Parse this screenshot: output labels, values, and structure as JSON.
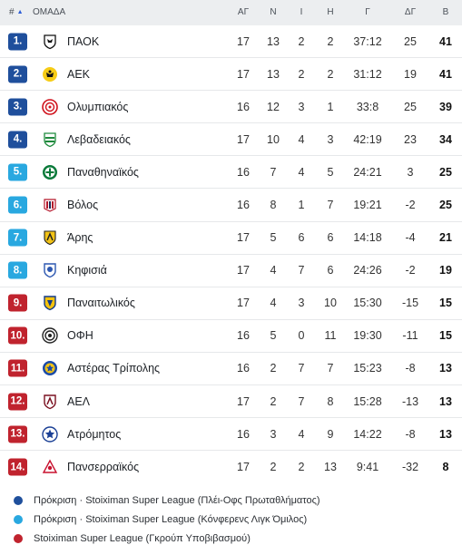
{
  "header": {
    "rank": "#",
    "sort_icon": "▲",
    "team": "ΟΜΑΔΑ",
    "played": "ΑΓ",
    "won": "Ν",
    "drawn": "Ι",
    "lost": "Η",
    "goals": "Γ",
    "diff": "ΔΓ",
    "points": "Β"
  },
  "colors": {
    "navy": "#1f4f9c",
    "sky": "#29a8e0",
    "red": "#c0232e"
  },
  "rows": [
    {
      "rank": "1.",
      "zone": "navy",
      "team": "ΠΑΟΚ",
      "logo": "paok-logo",
      "played": "17",
      "won": "13",
      "drawn": "2",
      "lost": "2",
      "goals": "37:12",
      "diff": "25",
      "points": "41"
    },
    {
      "rank": "2.",
      "zone": "navy",
      "team": "ΑΕΚ",
      "logo": "aek-logo",
      "played": "17",
      "won": "13",
      "drawn": "2",
      "lost": "2",
      "goals": "31:12",
      "diff": "19",
      "points": "41"
    },
    {
      "rank": "3.",
      "zone": "navy",
      "team": "Ολυμπιακός",
      "logo": "olympiakos-logo",
      "played": "16",
      "won": "12",
      "drawn": "3",
      "lost": "1",
      "goals": "33:8",
      "diff": "25",
      "points": "39"
    },
    {
      "rank": "4.",
      "zone": "navy",
      "team": "Λεβαδειακός",
      "logo": "levadiakos-logo",
      "played": "17",
      "won": "10",
      "drawn": "4",
      "lost": "3",
      "goals": "42:19",
      "diff": "23",
      "points": "34"
    },
    {
      "rank": "5.",
      "zone": "sky",
      "team": "Παναθηναϊκός",
      "logo": "panathinaikos-logo",
      "played": "16",
      "won": "7",
      "drawn": "4",
      "lost": "5",
      "goals": "24:21",
      "diff": "3",
      "points": "25"
    },
    {
      "rank": "6.",
      "zone": "sky",
      "team": "Βόλος",
      "logo": "volos-logo",
      "played": "16",
      "won": "8",
      "drawn": "1",
      "lost": "7",
      "goals": "19:21",
      "diff": "-2",
      "points": "25"
    },
    {
      "rank": "7.",
      "zone": "sky",
      "team": "Άρης",
      "logo": "aris-logo",
      "played": "17",
      "won": "5",
      "drawn": "6",
      "lost": "6",
      "goals": "14:18",
      "diff": "-4",
      "points": "21"
    },
    {
      "rank": "8.",
      "zone": "sky",
      "team": "Κηφισιά",
      "logo": "kifisia-logo",
      "played": "17",
      "won": "4",
      "drawn": "7",
      "lost": "6",
      "goals": "24:26",
      "diff": "-2",
      "points": "19"
    },
    {
      "rank": "9.",
      "zone": "red",
      "team": "Παναιτωλικός",
      "logo": "panetolikos-logo",
      "played": "17",
      "won": "4",
      "drawn": "3",
      "lost": "10",
      "goals": "15:30",
      "diff": "-15",
      "points": "15"
    },
    {
      "rank": "10.",
      "zone": "red",
      "team": "ΟΦΗ",
      "logo": "ofi-logo",
      "played": "16",
      "won": "5",
      "drawn": "0",
      "lost": "11",
      "goals": "19:30",
      "diff": "-11",
      "points": "15"
    },
    {
      "rank": "11.",
      "zone": "red",
      "team": "Αστέρας Τρίπολης",
      "logo": "asteras-tripolis-logo",
      "played": "16",
      "won": "2",
      "drawn": "7",
      "lost": "7",
      "goals": "15:23",
      "diff": "-8",
      "points": "13"
    },
    {
      "rank": "12.",
      "zone": "red",
      "team": "ΑΕΛ",
      "logo": "ael-logo",
      "played": "17",
      "won": "2",
      "drawn": "7",
      "lost": "8",
      "goals": "15:28",
      "diff": "-13",
      "points": "13"
    },
    {
      "rank": "13.",
      "zone": "red",
      "team": "Ατρόμητος",
      "logo": "atromitos-logo",
      "played": "16",
      "won": "3",
      "drawn": "4",
      "lost": "9",
      "goals": "14:22",
      "diff": "-8",
      "points": "13"
    },
    {
      "rank": "14.",
      "zone": "red",
      "team": "Πανσερραϊκός",
      "logo": "panserraikos-logo",
      "played": "17",
      "won": "2",
      "drawn": "2",
      "lost": "13",
      "goals": "9:41",
      "diff": "-32",
      "points": "8"
    }
  ],
  "legend": [
    {
      "zone": "navy",
      "label": "Πρόκριση · Stoiximan Super League (Πλέι-Οφς Πρωταθλήματος)"
    },
    {
      "zone": "sky",
      "label": "Πρόκριση · Stoiximan Super League (Κόνφερενς Λιγκ Όμιλος)"
    },
    {
      "zone": "red",
      "label": "Stoiximan Super League (Γκρούπ Υποβιβασμού)"
    }
  ]
}
